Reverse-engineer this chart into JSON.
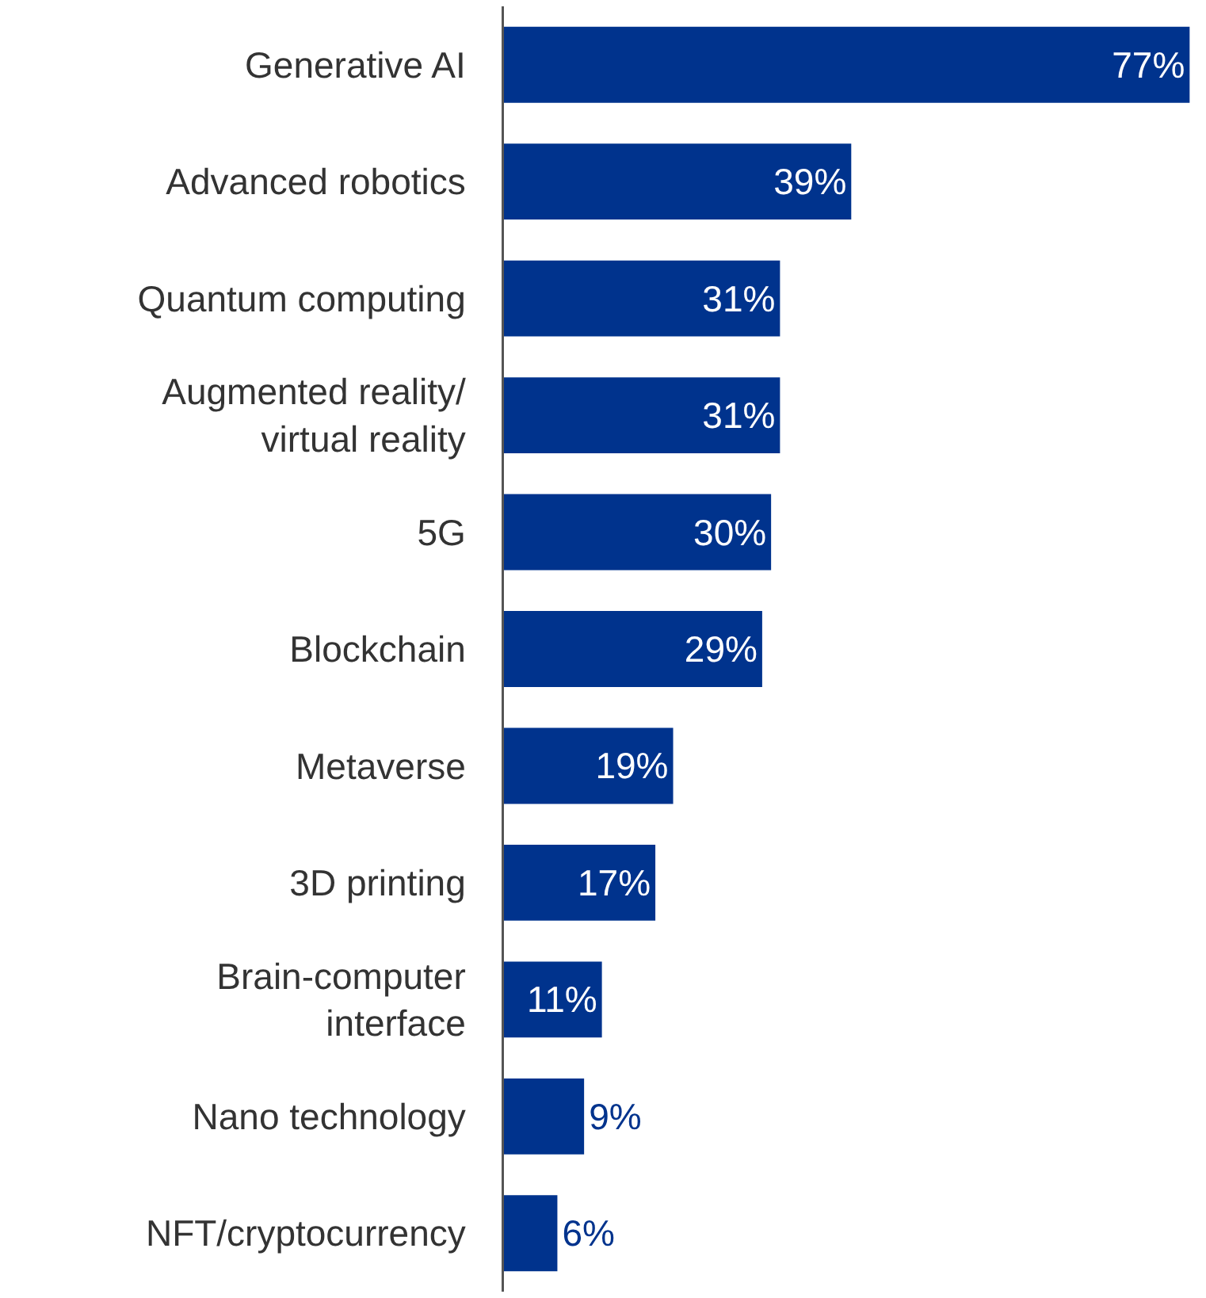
{
  "chart_data": {
    "type": "bar",
    "orientation": "horizontal",
    "categories": [
      "Generative AI",
      "Advanced robotics",
      "Quantum computing",
      "Augmented reality/virtual reality",
      "5G",
      "Blockchain",
      "Metaverse",
      "3D printing",
      "Brain-computer interface",
      "Nano technology",
      "NFT/cryptocurrency"
    ],
    "values": [
      77,
      39,
      31,
      31,
      30,
      29,
      19,
      17,
      11,
      9,
      6
    ],
    "value_labels": [
      "77%",
      "39%",
      "31%",
      "31%",
      "30%",
      "29%",
      "19%",
      "17%",
      "11%",
      "9%",
      "6%"
    ],
    "color": "#00338d"
  }
}
